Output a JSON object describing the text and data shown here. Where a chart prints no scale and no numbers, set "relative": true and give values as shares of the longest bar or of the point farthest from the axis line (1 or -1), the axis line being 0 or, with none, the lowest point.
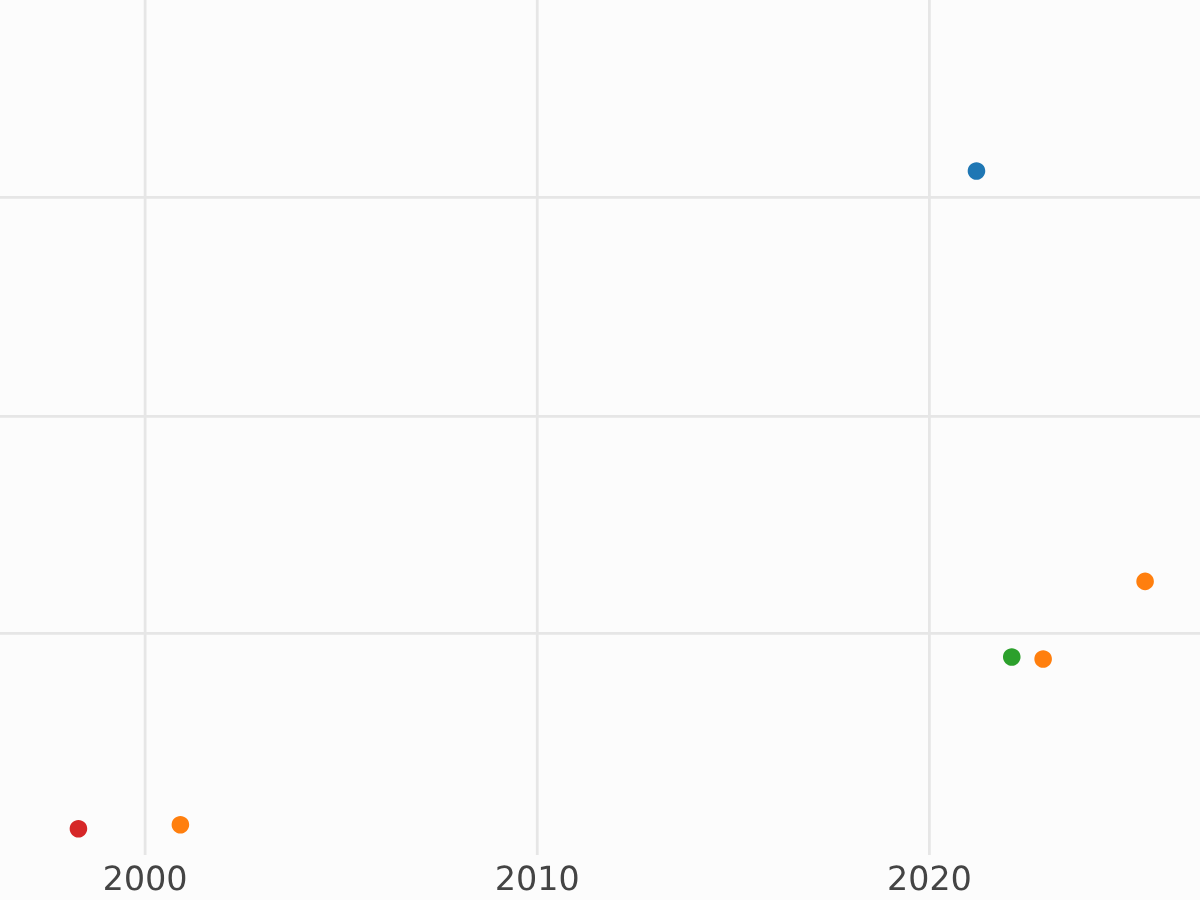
{
  "chart_data": {
    "type": "scatter",
    "relative": true,
    "x": [
      2021.2,
      2025.5,
      2022.1,
      2022.9,
      1998.3,
      2000.9
    ],
    "values": [
      1,
      0.376,
      0.261,
      0.258,
      0,
      0.006
    ],
    "colors": [
      "#1f77b4",
      "#ff7f0e",
      "#2ca02c",
      "#ff7f0e",
      "#d62728",
      "#ff7f0e"
    ],
    "xlim": [
      1996.3,
      2026.9
    ],
    "xticks": [
      2000,
      2010,
      2020
    ],
    "grid": true,
    "marker": "circle"
  }
}
